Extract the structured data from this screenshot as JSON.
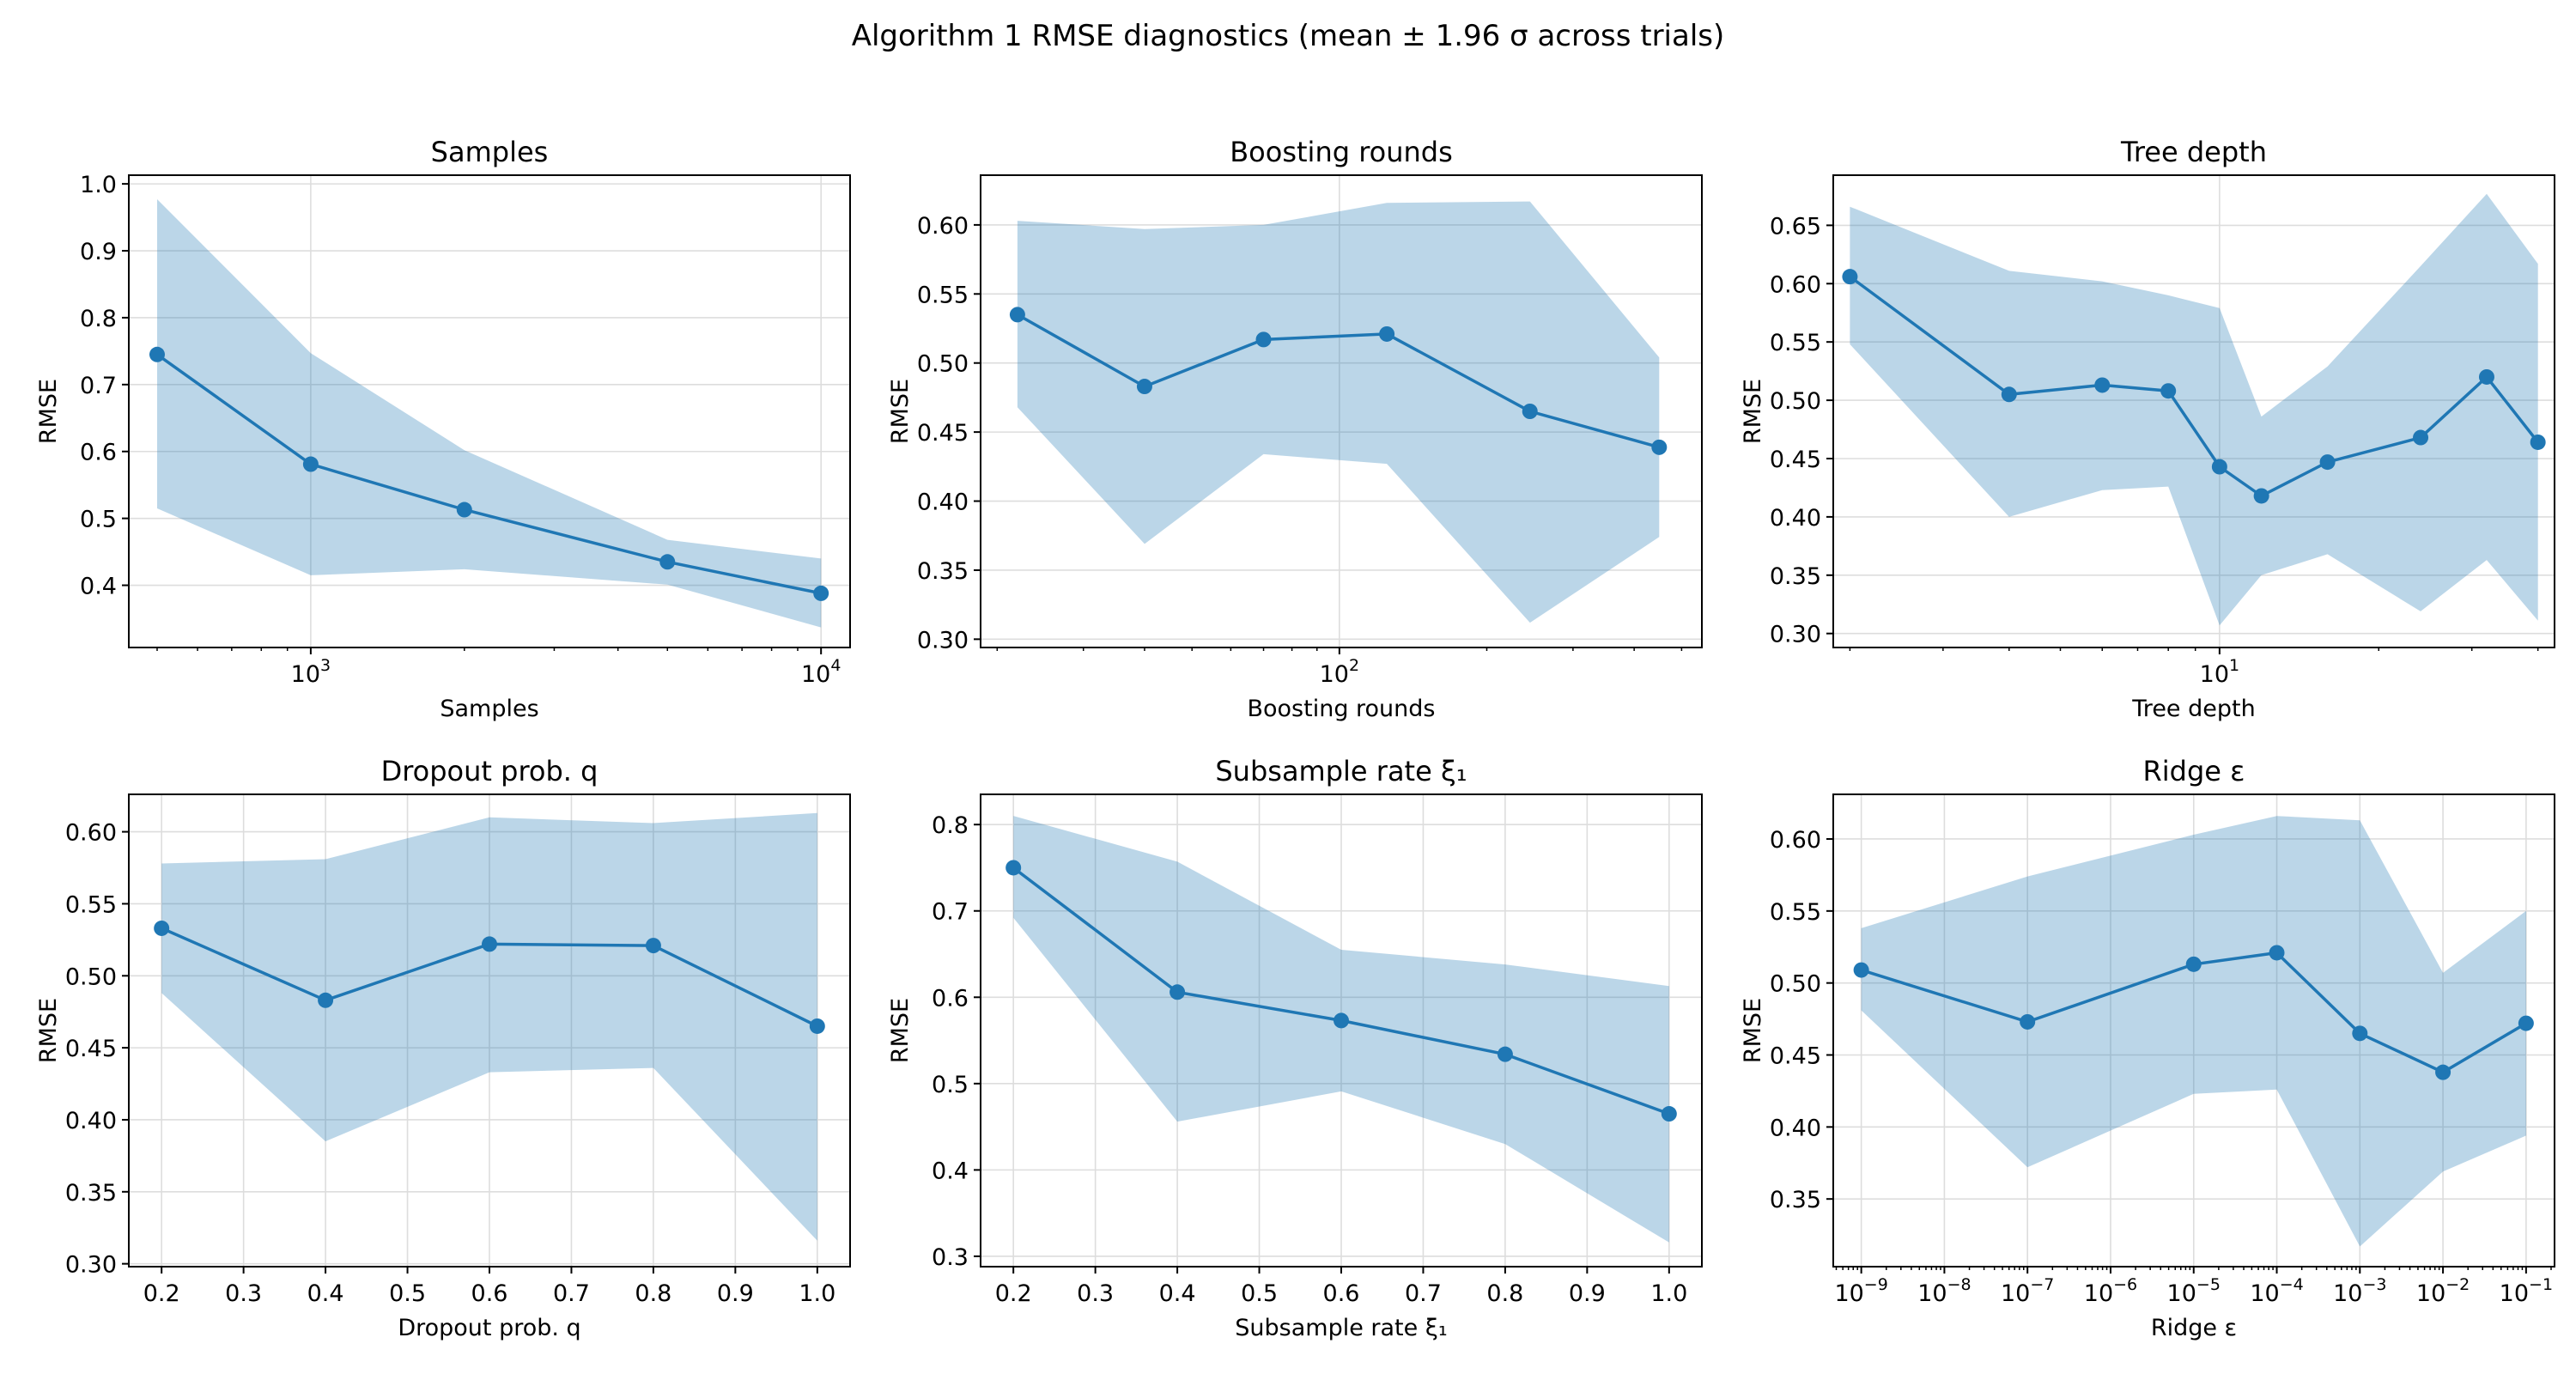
{
  "figure": {
    "suptitle": "Algorithm 1 RMSE diagnostics (mean ± 1.96 σ across trials)"
  },
  "colors": {
    "line": "#1f77b4",
    "band": "#1f77b4",
    "grid": "#dddddd",
    "axis": "#000000"
  },
  "chart_data": [
    {
      "type": "line",
      "title": "Samples",
      "xlabel": "Samples",
      "ylabel": "RMSE",
      "xscale": "log",
      "xlim": [
        440,
        11400
      ],
      "ylim": [
        0.307,
        1.013
      ],
      "xticks": [
        1000,
        10000
      ],
      "xtick_labels": [
        {
          "base": "10",
          "exp": "3"
        },
        {
          "base": "10",
          "exp": "4"
        }
      ],
      "xticks_minor": [
        500,
        600,
        700,
        800,
        900,
        2000,
        3000,
        4000,
        5000,
        6000,
        7000,
        8000,
        9000
      ],
      "yticks": [
        0.4,
        0.5,
        0.6,
        0.7,
        0.8,
        0.9,
        1.0
      ],
      "ytick_labels": [
        "0.4",
        "0.5",
        "0.6",
        "0.7",
        "0.8",
        "0.9",
        "1.0"
      ],
      "grid": true,
      "series": [
        {
          "x": [
            500,
            1000,
            2000,
            5000,
            10000
          ],
          "y": [
            0.745,
            0.581,
            0.513,
            0.435,
            0.388
          ],
          "lower": [
            0.515,
            0.415,
            0.424,
            0.401,
            0.337
          ],
          "upper": [
            0.977,
            0.747,
            0.602,
            0.468,
            0.44
          ]
        }
      ]
    },
    {
      "type": "line",
      "title": "Boosting rounds",
      "xlabel": "Boosting rounds",
      "ylabel": "RMSE",
      "xscale": "log",
      "xlim": [
        18.5,
        550
      ],
      "ylim": [
        0.294,
        0.636
      ],
      "xticks": [
        100
      ],
      "xtick_labels": [
        {
          "base": "10",
          "exp": "2"
        }
      ],
      "xticks_minor": [
        20,
        30,
        40,
        50,
        60,
        70,
        80,
        90,
        200,
        300,
        400,
        500
      ],
      "yticks": [
        0.3,
        0.35,
        0.4,
        0.45,
        0.5,
        0.55,
        0.6
      ],
      "ytick_labels": [
        "0.30",
        "0.35",
        "0.40",
        "0.45",
        "0.50",
        "0.55",
        "0.60"
      ],
      "grid": true,
      "series": [
        {
          "x": [
            22,
            40,
            70,
            125,
            245,
            450
          ],
          "y": [
            0.535,
            0.483,
            0.517,
            0.521,
            0.465,
            0.439
          ],
          "lower": [
            0.468,
            0.369,
            0.434,
            0.427,
            0.312,
            0.374
          ],
          "upper": [
            0.603,
            0.597,
            0.6,
            0.616,
            0.617,
            0.504
          ]
        }
      ]
    },
    {
      "type": "line",
      "title": "Tree depth",
      "xlabel": "Tree depth",
      "ylabel": "RMSE",
      "xscale": "log",
      "xlim": [
        1.86,
        43
      ],
      "ylim": [
        0.288,
        0.693
      ],
      "xticks": [
        10
      ],
      "xtick_labels": [
        {
          "base": "10",
          "exp": "1"
        }
      ],
      "xticks_minor": [
        2,
        3,
        4,
        5,
        6,
        7,
        8,
        9,
        20,
        30,
        40
      ],
      "yticks": [
        0.3,
        0.35,
        0.4,
        0.45,
        0.5,
        0.55,
        0.6,
        0.65
      ],
      "ytick_labels": [
        "0.30",
        "0.35",
        "0.40",
        "0.45",
        "0.50",
        "0.55",
        "0.60",
        "0.65"
      ],
      "grid": true,
      "series": [
        {
          "x": [
            2,
            4,
            6,
            8,
            10,
            12,
            16,
            24,
            32,
            40
          ],
          "y": [
            0.606,
            0.505,
            0.513,
            0.508,
            0.443,
            0.418,
            0.447,
            0.468,
            0.52,
            0.464
          ],
          "lower": [
            0.548,
            0.4,
            0.423,
            0.426,
            0.307,
            0.35,
            0.368,
            0.319,
            0.363,
            0.311
          ],
          "upper": [
            0.666,
            0.611,
            0.602,
            0.59,
            0.579,
            0.486,
            0.529,
            0.615,
            0.677,
            0.617
          ]
        }
      ]
    },
    {
      "type": "line",
      "title": "Dropout prob. q",
      "xlabel": "Dropout prob. q",
      "ylabel": "RMSE",
      "xscale": "linear",
      "xlim": [
        0.16,
        1.04
      ],
      "ylim": [
        0.298,
        0.626
      ],
      "xticks": [
        0.2,
        0.3,
        0.4,
        0.5,
        0.6,
        0.7,
        0.8,
        0.9,
        1.0
      ],
      "xtick_labels": [
        "0.2",
        "0.3",
        "0.4",
        "0.5",
        "0.6",
        "0.7",
        "0.8",
        "0.9",
        "1.0"
      ],
      "xticks_minor": [],
      "yticks": [
        0.3,
        0.35,
        0.4,
        0.45,
        0.5,
        0.55,
        0.6
      ],
      "ytick_labels": [
        "0.30",
        "0.35",
        "0.40",
        "0.45",
        "0.50",
        "0.55",
        "0.60"
      ],
      "grid": true,
      "series": [
        {
          "x": [
            0.2,
            0.4,
            0.6,
            0.8,
            1.0
          ],
          "y": [
            0.533,
            0.483,
            0.522,
            0.521,
            0.465
          ],
          "lower": [
            0.488,
            0.385,
            0.433,
            0.436,
            0.316
          ],
          "upper": [
            0.578,
            0.581,
            0.61,
            0.606,
            0.613
          ]
        }
      ]
    },
    {
      "type": "line",
      "title": "Subsample rate ξ₁",
      "xlabel": "Subsample rate ξ₁",
      "ylabel": "RMSE",
      "xscale": "linear",
      "xlim": [
        0.16,
        1.04
      ],
      "ylim": [
        0.288,
        0.835
      ],
      "xticks": [
        0.2,
        0.3,
        0.4,
        0.5,
        0.6,
        0.7,
        0.8,
        0.9,
        1.0
      ],
      "xtick_labels": [
        "0.2",
        "0.3",
        "0.4",
        "0.5",
        "0.6",
        "0.7",
        "0.8",
        "0.9",
        "1.0"
      ],
      "xticks_minor": [],
      "yticks": [
        0.3,
        0.4,
        0.5,
        0.6,
        0.7,
        0.8
      ],
      "ytick_labels": [
        "0.3",
        "0.4",
        "0.5",
        "0.6",
        "0.7",
        "0.8"
      ],
      "grid": true,
      "series": [
        {
          "x": [
            0.2,
            0.4,
            0.6,
            0.8,
            1.0
          ],
          "y": [
            0.75,
            0.606,
            0.573,
            0.534,
            0.465
          ],
          "lower": [
            0.692,
            0.456,
            0.491,
            0.43,
            0.316
          ],
          "upper": [
            0.81,
            0.757,
            0.655,
            0.638,
            0.613
          ]
        }
      ]
    },
    {
      "type": "line",
      "title": "Ridge ε",
      "xlabel": "Ridge ε",
      "ylabel": "RMSE",
      "xscale": "log",
      "xlim": [
        4.6e-10,
        0.22
      ],
      "ylim": [
        0.303,
        0.631
      ],
      "xticks": [
        1e-09,
        1e-08,
        1e-07,
        1e-06,
        1e-05,
        0.0001,
        0.001,
        0.01,
        0.1
      ],
      "xtick_labels": [
        {
          "base": "10",
          "exp": "−9"
        },
        {
          "base": "10",
          "exp": "−8"
        },
        {
          "base": "10",
          "exp": "−7"
        },
        {
          "base": "10",
          "exp": "−6"
        },
        {
          "base": "10",
          "exp": "−5"
        },
        {
          "base": "10",
          "exp": "−4"
        },
        {
          "base": "10",
          "exp": "−3"
        },
        {
          "base": "10",
          "exp": "−2"
        },
        {
          "base": "10",
          "exp": "−1"
        }
      ],
      "xticks_minor_decade": true,
      "yticks": [
        0.35,
        0.4,
        0.45,
        0.5,
        0.55,
        0.6
      ],
      "ytick_labels": [
        "0.35",
        "0.40",
        "0.45",
        "0.50",
        "0.55",
        "0.60"
      ],
      "grid": true,
      "series": [
        {
          "x": [
            1e-09,
            1e-07,
            1e-05,
            0.0001,
            0.001,
            0.01,
            0.1
          ],
          "y": [
            0.509,
            0.473,
            0.513,
            0.521,
            0.465,
            0.438,
            0.472
          ],
          "lower": [
            0.481,
            0.372,
            0.423,
            0.426,
            0.317,
            0.369,
            0.394
          ],
          "upper": [
            0.538,
            0.574,
            0.603,
            0.616,
            0.613,
            0.507,
            0.55
          ]
        }
      ]
    }
  ]
}
